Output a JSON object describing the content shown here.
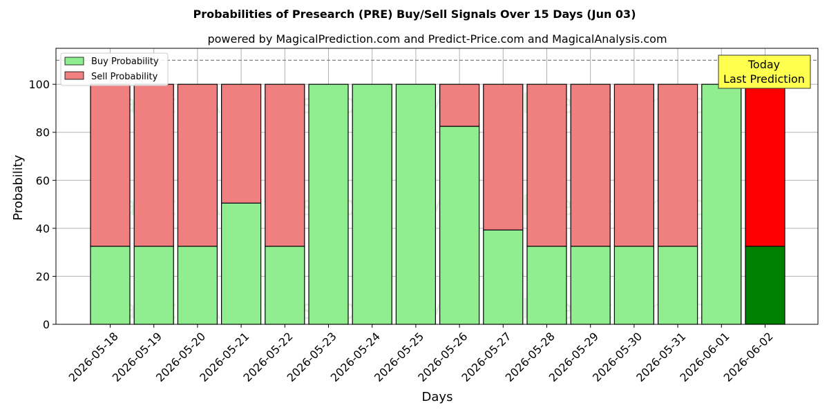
{
  "chart_data": {
    "type": "bar",
    "stacked": true,
    "title": "Probabilities of Presearch (PRE) Buy/Sell Signals Over 15 Days (Jun 03)",
    "subtitle": "powered by MagicalPrediction.com and Predict-Price.com and MagicalAnalysis.com",
    "xlabel": "Days",
    "ylabel": "Probability",
    "ylim": [
      0,
      115
    ],
    "yticks": [
      0,
      20,
      40,
      60,
      80,
      100
    ],
    "grid": true,
    "legend_position": "top-left",
    "reference_line": 110,
    "categories": [
      "2026-05-18",
      "2026-05-19",
      "2026-05-20",
      "2026-05-21",
      "2026-05-22",
      "2026-05-23",
      "2026-05-24",
      "2026-05-25",
      "2026-05-26",
      "2026-05-27",
      "2026-05-28",
      "2026-05-29",
      "2026-05-30",
      "2026-05-31",
      "2026-06-01",
      "2026-06-02"
    ],
    "series": [
      {
        "name": "Buy Probability",
        "color": "#90ee90",
        "highlight_color": "#008000",
        "values": [
          32.5,
          32.5,
          32.5,
          50.5,
          32.5,
          100,
          100,
          100,
          82.5,
          39.3,
          32.5,
          32.5,
          32.5,
          32.5,
          100,
          32.5
        ]
      },
      {
        "name": "Sell Probability",
        "color": "#f08080",
        "highlight_color": "#ff0000",
        "values": [
          67.5,
          67.5,
          67.5,
          49.5,
          67.5,
          0,
          0,
          0,
          17.5,
          60.7,
          67.5,
          67.5,
          67.5,
          67.5,
          0,
          67.5
        ]
      }
    ],
    "highlight_index": 15,
    "annotation": {
      "line1": "Today",
      "line2": "Last Prediction",
      "color": "#ffff4d"
    },
    "watermarks": [
      "MagicalAnalysis.com",
      "MagicalPrediction.com"
    ]
  }
}
